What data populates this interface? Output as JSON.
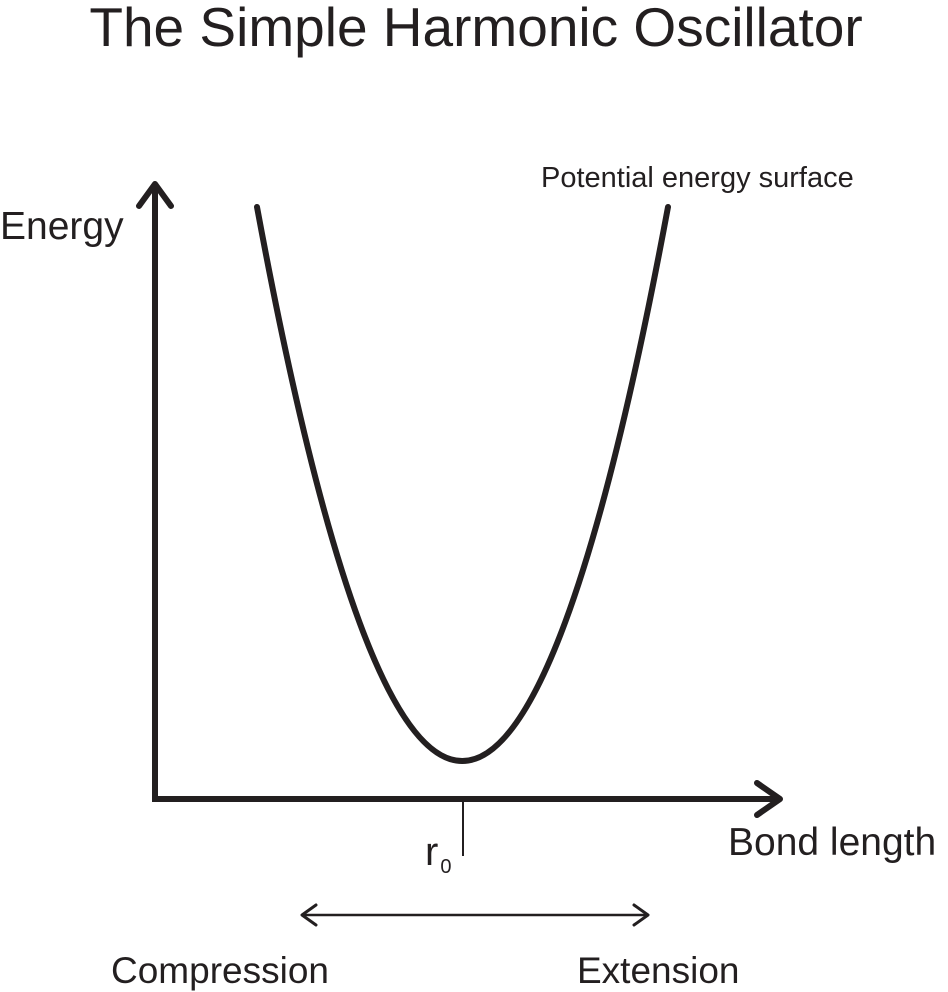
{
  "title": "The Simple Harmonic Oscillator",
  "axes": {
    "y_label": "Energy",
    "x_label": "Bond length"
  },
  "curve_label": "Potential energy surface",
  "equilibrium": {
    "symbol": "r",
    "subscript": "0"
  },
  "displacement": {
    "left_label": "Compression",
    "right_label": "Extension"
  },
  "colors": {
    "ink": "#231f20",
    "background": "#ffffff"
  }
}
